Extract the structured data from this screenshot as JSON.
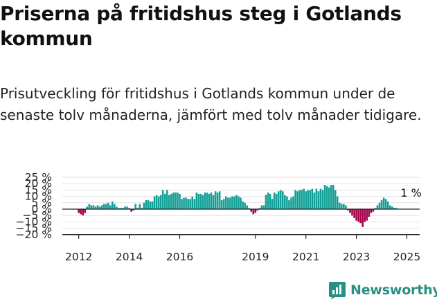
{
  "header": {
    "title": "Priserna på fritidshus steg i Gotlands kommun",
    "subtitle": "Prisutveckling för fritidshus i Gotlands kommun under de senaste tolv månaderna, jämfört med tolv månader tidigare."
  },
  "brand": {
    "name": "Newsworthy",
    "color": "#2a8f83"
  },
  "chart_data": {
    "type": "bar",
    "title": "Priserna på fritidshus steg i Gotlands kommun",
    "subtitle": "Prisutveckling för fritidshus i Gotlands kommun under de senaste tolv månaderna, jämfört med tolv månader tidigare.",
    "xlabel": "",
    "ylabel": "",
    "ylim": [
      -20,
      25
    ],
    "ytick_values": [
      -20,
      -15,
      -10,
      -5,
      0,
      5,
      10,
      15,
      20,
      25
    ],
    "ytick_labels": [
      "−20 %",
      "−15 %",
      "−10 %",
      "−5 %",
      "0 %",
      "5 %",
      "10 %",
      "15 %",
      "20 %",
      "25 %"
    ],
    "xtick_labels": [
      "2012",
      "2014",
      "2016",
      "2019",
      "2021",
      "2023",
      "2025"
    ],
    "xtick_years": [
      2012,
      2014,
      2016,
      2019,
      2021,
      2023,
      2025
    ],
    "grid": true,
    "legend": "none",
    "positive_color": "#12a097",
    "negative_color": "#a3004a",
    "start_month": "2012-01",
    "annotation": {
      "text": "1 %",
      "month": "2025-03",
      "value": 1
    },
    "values": [
      -3,
      -4,
      -5,
      -3,
      2,
      4,
      3,
      3,
      2,
      3,
      2,
      3,
      4,
      4,
      5,
      3,
      6,
      4,
      2,
      1,
      1,
      1,
      2,
      2,
      1,
      -2,
      -1,
      4,
      1,
      4,
      1,
      5,
      7,
      7,
      6,
      6,
      10,
      11,
      10,
      11,
      15,
      12,
      15,
      11,
      12,
      13,
      13,
      13,
      12,
      8,
      9,
      9,
      8,
      8,
      10,
      8,
      13,
      12,
      12,
      11,
      13,
      13,
      12,
      13,
      11,
      14,
      13,
      14,
      7,
      8,
      10,
      9,
      9,
      10,
      10,
      11,
      10,
      9,
      6,
      5,
      3,
      1,
      -2,
      -4,
      -3,
      -1,
      1,
      3,
      3,
      11,
      13,
      12,
      8,
      13,
      12,
      14,
      15,
      14,
      11,
      10,
      7,
      9,
      10,
      15,
      14,
      15,
      15,
      16,
      14,
      15,
      15,
      16,
      13,
      16,
      14,
      16,
      15,
      19,
      18,
      17,
      19,
      19,
      15,
      10,
      5,
      4,
      4,
      3,
      -1,
      -3,
      -5,
      -7,
      -9,
      -10,
      -11,
      -14,
      -10,
      -9,
      -6,
      -3,
      -2,
      1,
      3,
      5,
      7,
      9,
      8,
      6,
      3,
      2,
      1,
      1
    ]
  }
}
